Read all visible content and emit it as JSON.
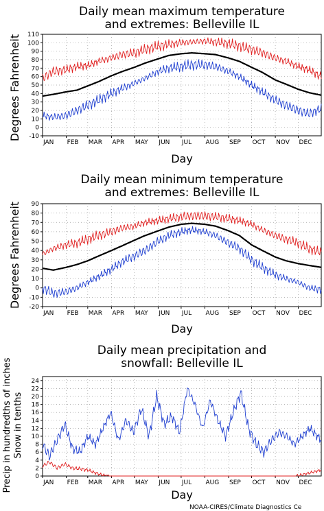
{
  "colors": {
    "max": "#e02020",
    "min": "#1f3fd0",
    "mean": "#000000",
    "grid": "#9a9a9a"
  },
  "months": [
    "JAN",
    "FEB",
    "MAR",
    "APR",
    "MAY",
    "JUN",
    "JUL",
    "AUG",
    "SEP",
    "OCT",
    "NOV",
    "DEC"
  ],
  "credit": "NOAA-CIRES/Climate Diagnostics Ce",
  "chart_data": [
    {
      "type": "line",
      "title_line1": "Daily mean maximum temperature",
      "title_line2": "and extremes: Belleville IL",
      "xlabel": "Day",
      "ylabel": "Degrees Fahrenheit",
      "ylim": [
        -10,
        110
      ],
      "yticks": [
        -10,
        0,
        10,
        20,
        30,
        40,
        50,
        60,
        70,
        80,
        90,
        100,
        110
      ],
      "grid": true,
      "x": [
        1,
        15,
        32,
        46,
        60,
        74,
        91,
        105,
        121,
        135,
        152,
        166,
        182,
        196,
        213,
        227,
        244,
        258,
        274,
        288,
        305,
        319,
        335,
        349,
        365
      ],
      "series": [
        {
          "role": "max",
          "values": [
            58,
            66,
            68,
            72,
            73,
            78,
            82,
            86,
            88,
            92,
            96,
            98,
            100,
            101,
            102,
            101,
            99,
            96,
            92,
            88,
            82,
            78,
            72,
            68,
            60
          ]
        },
        {
          "role": "mean",
          "values": [
            37,
            39,
            42,
            44,
            49,
            54,
            61,
            66,
            71,
            76,
            81,
            85,
            87,
            88,
            87,
            86,
            82,
            78,
            71,
            65,
            56,
            51,
            45,
            41,
            38
          ]
        },
        {
          "role": "min",
          "values": [
            14,
            12,
            14,
            20,
            26,
            32,
            40,
            46,
            52,
            58,
            66,
            70,
            72,
            74,
            74,
            72,
            66,
            60,
            50,
            42,
            32,
            26,
            20,
            16,
            22
          ]
        }
      ]
    },
    {
      "type": "line",
      "title_line1": "Daily mean minimum temperature",
      "title_line2": "and extremes: Belleville IL",
      "xlabel": "Day",
      "ylabel": "Degrees Fahrenheit",
      "ylim": [
        -20,
        90
      ],
      "yticks": [
        -20,
        -10,
        0,
        10,
        20,
        30,
        40,
        50,
        60,
        70,
        80,
        90
      ],
      "grid": true,
      "x": [
        1,
        15,
        32,
        46,
        60,
        74,
        91,
        105,
        121,
        135,
        152,
        166,
        182,
        196,
        213,
        227,
        244,
        258,
        274,
        288,
        305,
        319,
        335,
        349,
        365
      ],
      "series": [
        {
          "role": "max",
          "values": [
            36,
            42,
            46,
            48,
            52,
            56,
            60,
            64,
            66,
            70,
            72,
            74,
            76,
            77,
            77,
            76,
            74,
            72,
            68,
            62,
            56,
            52,
            48,
            42,
            38
          ]
        },
        {
          "role": "mean",
          "values": [
            21,
            19,
            22,
            25,
            29,
            34,
            40,
            45,
            51,
            56,
            61,
            65,
            68,
            69,
            68,
            66,
            61,
            56,
            46,
            40,
            33,
            29,
            26,
            24,
            22
          ]
        },
        {
          "role": "min",
          "values": [
            0,
            -6,
            -4,
            0,
            6,
            12,
            20,
            28,
            34,
            40,
            50,
            56,
            60,
            62,
            60,
            56,
            48,
            42,
            30,
            22,
            14,
            10,
            6,
            0,
            -2
          ]
        }
      ]
    },
    {
      "type": "line",
      "title_line1": "Daily mean precipitation and",
      "title_line2": "snowfall: Belleville IL",
      "xlabel": "Day",
      "ylabel_line1": "Precip in hundredths of inches",
      "ylabel_line2": "Snow in tenths",
      "ylim": [
        0,
        25
      ],
      "yticks": [
        0,
        2,
        4,
        6,
        8,
        10,
        12,
        14,
        16,
        18,
        20,
        22,
        24
      ],
      "grid": true,
      "x": [
        1,
        10,
        20,
        30,
        40,
        50,
        60,
        70,
        80,
        90,
        100,
        110,
        120,
        130,
        140,
        150,
        160,
        170,
        180,
        190,
        200,
        210,
        220,
        230,
        240,
        250,
        260,
        270,
        280,
        290,
        300,
        310,
        320,
        330,
        340,
        350,
        365
      ],
      "series": [
        {
          "role": "precip",
          "values": [
            8,
            5,
            9,
            13,
            7,
            6,
            10,
            8,
            12,
            16,
            9,
            14,
            11,
            17,
            10,
            20,
            13,
            15,
            11,
            22,
            18,
            12,
            19,
            14,
            10,
            16,
            21,
            12,
            8,
            6,
            9,
            11,
            10,
            8,
            10,
            12,
            9
          ]
        },
        {
          "role": "snow",
          "values": [
            2.5,
            3.5,
            2,
            3,
            2,
            1.8,
            1.5,
            0.8,
            0.2,
            0,
            0,
            0,
            0,
            0,
            0,
            0,
            0,
            0,
            0,
            0,
            0,
            0,
            0,
            0,
            0,
            0,
            0,
            0,
            0,
            0,
            0,
            0,
            0,
            0,
            0.3,
            0.8,
            1.5
          ]
        }
      ]
    }
  ]
}
